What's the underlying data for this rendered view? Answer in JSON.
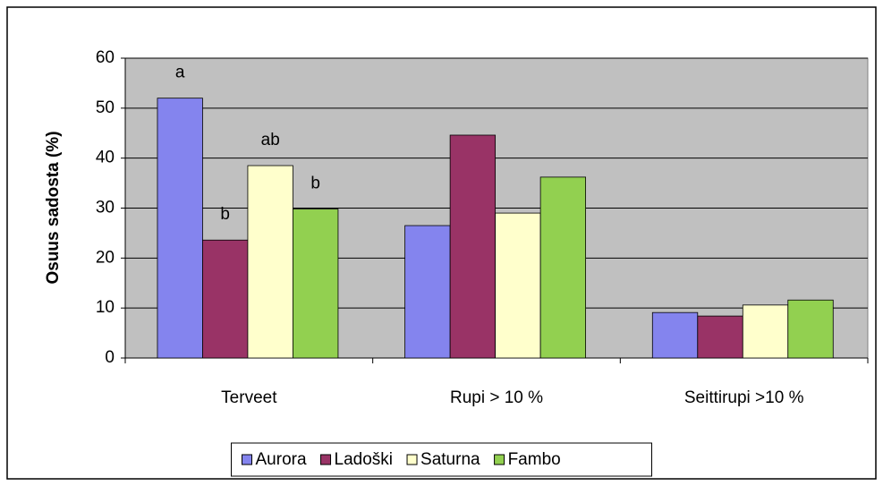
{
  "chart_data": {
    "type": "bar",
    "categories": [
      "Terveet",
      "Rupi > 10 %",
      "Seittirupi >10 %"
    ],
    "series": [
      {
        "name": "Aurora",
        "color": "#8484ee",
        "values": [
          52,
          26.5,
          9.1
        ]
      },
      {
        "name": "Ladoški",
        "color": "#993366",
        "values": [
          23.6,
          44.6,
          8.4
        ]
      },
      {
        "name": "Saturna",
        "color": "#ffffcc",
        "values": [
          38.5,
          29,
          10.6
        ]
      },
      {
        "name": "Fambo",
        "color": "#92d050",
        "values": [
          29.8,
          36.2,
          11.6
        ]
      }
    ],
    "ylabel": "Osuus sadosta  (%)",
    "ylim": [
      0,
      60
    ],
    "yticks": [
      0,
      10,
      20,
      30,
      40,
      50,
      60
    ],
    "grid": true,
    "legend": "bottom",
    "annotations": [
      {
        "text": "a",
        "series": 0,
        "category": 0
      },
      {
        "text": "b",
        "series": 1,
        "category": 0
      },
      {
        "text": "ab",
        "series": 2,
        "category": 0
      },
      {
        "text": "b",
        "series": 3,
        "category": 0
      }
    ]
  }
}
